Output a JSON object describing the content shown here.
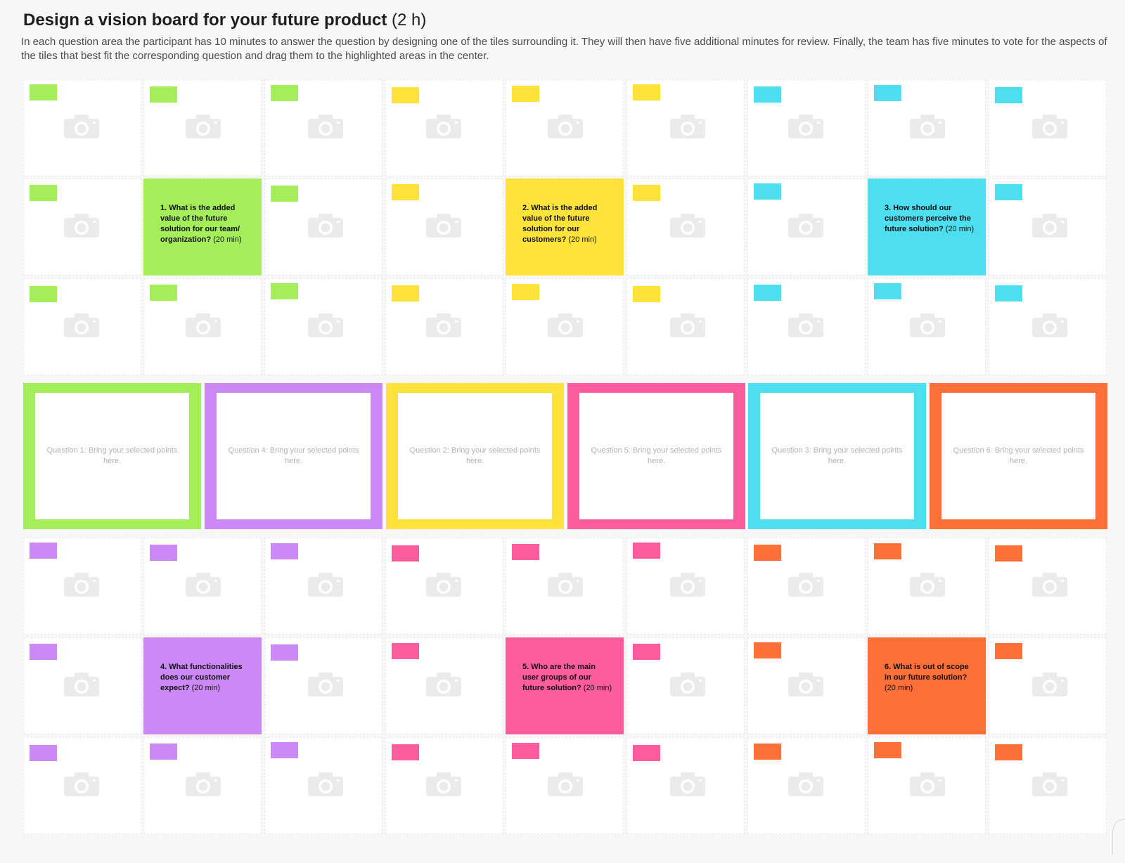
{
  "board": {
    "title": "Design a vision board for your future product",
    "duration": "(2 h)",
    "description": "In each question area the participant has 10 minutes to answer the question by designing one of the tiles surrounding it. They will then have five additional minutes for review. Finally, the team has five minutes to vote for the aspects of the tiles that best fit the corresponding question and drag them to the highlighted areas in the center."
  },
  "colors": {
    "green": "#a4ee5a",
    "yellow": "#ffe23a",
    "cyan": "#4ddfef",
    "purple": "#cb89f6",
    "pink": "#ff5c9f",
    "orange": "#ff7038",
    "placeholder_icon": "#ebebeb",
    "drop_text": "#b3b3b3"
  },
  "icons": {
    "tile_placeholder": "camera-icon"
  },
  "tile_grid": {
    "top_rows": [
      [
        "green",
        "green",
        "green",
        "yellow",
        "yellow",
        "yellow",
        "cyan",
        "cyan",
        "cyan"
      ],
      [
        "green",
        "green",
        "green",
        "yellow",
        "yellow",
        "yellow",
        "cyan",
        "cyan",
        "cyan"
      ],
      [
        "green",
        "green",
        "green",
        "yellow",
        "yellow",
        "yellow",
        "cyan",
        "cyan",
        "cyan"
      ]
    ],
    "bottom_rows": [
      [
        "purple",
        "purple",
        "purple",
        "pink",
        "pink",
        "pink",
        "orange",
        "orange",
        "orange"
      ],
      [
        "purple",
        "purple",
        "purple",
        "pink",
        "pink",
        "pink",
        "orange",
        "orange",
        "orange"
      ],
      [
        "purple",
        "purple",
        "purple",
        "pink",
        "pink",
        "pink",
        "orange",
        "orange",
        "orange"
      ]
    ]
  },
  "questions": [
    {
      "number": 1,
      "color": "green",
      "question": "1. What is the added value of the future solution for our team/ organization?",
      "time": "(20 min)"
    },
    {
      "number": 2,
      "color": "yellow",
      "question": "2. What is the added value of the future solution for our customers?",
      "time": "(20 min)"
    },
    {
      "number": 3,
      "color": "cyan",
      "question": "3. How should our customers perceive the future solution?",
      "time": "(20 min)"
    },
    {
      "number": 4,
      "color": "purple",
      "question": "4. What functionalities does our customer expect?",
      "time": "(20 min)"
    },
    {
      "number": 5,
      "color": "pink",
      "question": "5. Who are the main user groups of our future solution?",
      "time": "(20 min)"
    },
    {
      "number": 6,
      "color": "orange",
      "question": "6. What is out of scope in our future solution?",
      "time": "(20 min)"
    }
  ],
  "drop_zones": [
    {
      "color": "green",
      "label": "Question 1: Bring your selected points here."
    },
    {
      "color": "purple",
      "label": "Question 4: Bring your selected points here."
    },
    {
      "color": "yellow",
      "label": "Question 2: Bring your selected points here."
    },
    {
      "color": "pink",
      "label": "Question 5: Bring your selected points here."
    },
    {
      "color": "cyan",
      "label": "Question 3: Bring your selected points here."
    },
    {
      "color": "orange",
      "label": "Question 6: Bring your selected points here."
    }
  ]
}
